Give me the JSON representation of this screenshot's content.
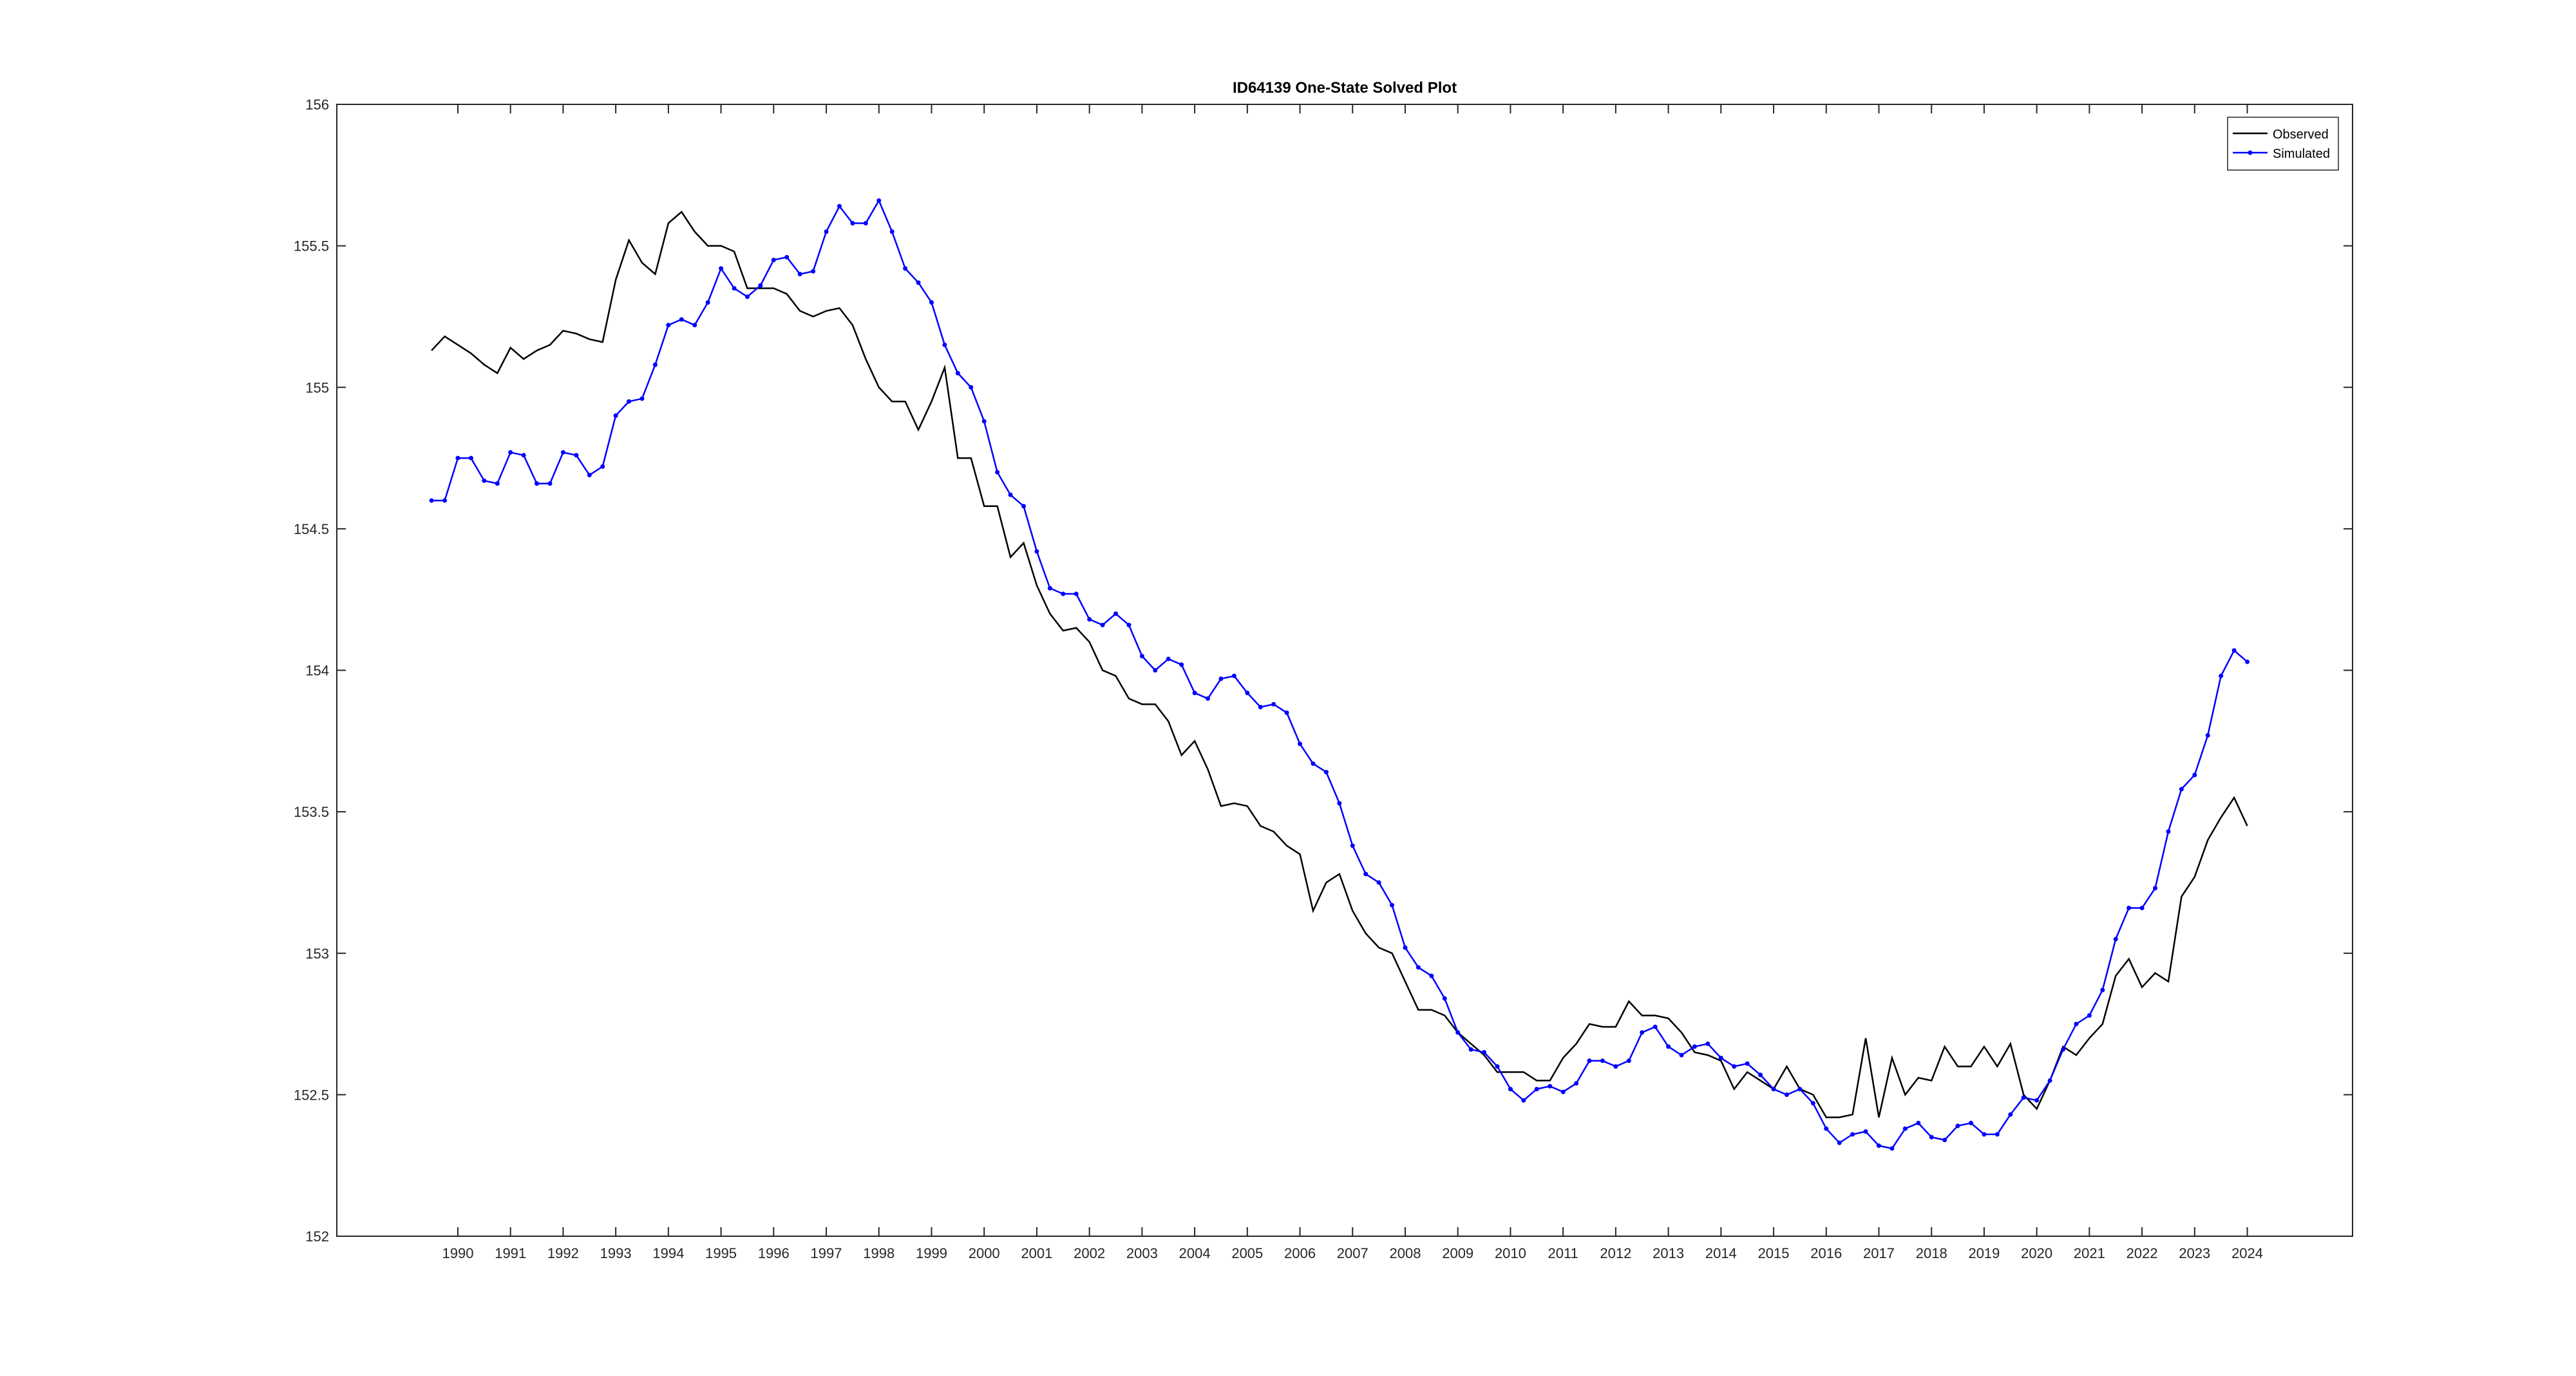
{
  "chart_data": {
    "type": "line",
    "title": "ID64139 One-State Solved Plot",
    "x": [
      1989.5,
      1989.75,
      1990,
      1990.25,
      1990.5,
      1990.75,
      1991,
      1991.25,
      1991.5,
      1991.75,
      1992,
      1992.25,
      1992.5,
      1992.75,
      1993,
      1993.25,
      1993.5,
      1993.75,
      1994,
      1994.25,
      1994.5,
      1994.75,
      1995,
      1995.25,
      1995.5,
      1995.75,
      1996,
      1996.25,
      1996.5,
      1996.75,
      1997,
      1997.25,
      1997.5,
      1997.75,
      1998,
      1998.25,
      1998.5,
      1998.75,
      1999,
      1999.25,
      1999.5,
      1999.75,
      2000,
      2000.25,
      2000.5,
      2000.75,
      2001,
      2001.25,
      2001.5,
      2001.75,
      2002,
      2002.25,
      2002.5,
      2002.75,
      2003,
      2003.25,
      2003.5,
      2003.75,
      2004,
      2004.25,
      2004.5,
      2004.75,
      2005,
      2005.25,
      2005.5,
      2005.75,
      2006,
      2006.25,
      2006.5,
      2006.75,
      2007,
      2007.25,
      2007.5,
      2007.75,
      2008,
      2008.25,
      2008.5,
      2008.75,
      2009,
      2009.25,
      2009.5,
      2009.75,
      2010,
      2010.25,
      2010.5,
      2010.75,
      2011,
      2011.25,
      2011.5,
      2011.75,
      2012,
      2012.25,
      2012.5,
      2012.75,
      2013,
      2013.25,
      2013.5,
      2013.75,
      2014,
      2014.25,
      2014.5,
      2014.75,
      2015,
      2015.25,
      2015.5,
      2015.75,
      2016,
      2016.25,
      2016.5,
      2016.75,
      2017,
      2017.25,
      2017.5,
      2017.75,
      2018,
      2018.25,
      2018.5,
      2018.75,
      2019,
      2019.25,
      2019.5,
      2019.75,
      2020,
      2020.25,
      2020.5,
      2020.75,
      2021,
      2021.25,
      2021.5,
      2021.75,
      2022,
      2022.25,
      2022.5,
      2022.75,
      2023,
      2023.25,
      2023.5,
      2023.75,
      2024
    ],
    "series": [
      {
        "name": "Observed",
        "color": "#000000",
        "marker": false,
        "values": [
          155.13,
          155.18,
          155.15,
          155.12,
          155.08,
          155.05,
          155.14,
          155.1,
          155.13,
          155.15,
          155.2,
          155.19,
          155.17,
          155.16,
          155.38,
          155.52,
          155.44,
          155.4,
          155.58,
          155.62,
          155.55,
          155.5,
          155.5,
          155.48,
          155.35,
          155.35,
          155.35,
          155.33,
          155.27,
          155.25,
          155.27,
          155.28,
          155.22,
          155.1,
          155.0,
          154.95,
          154.95,
          154.85,
          154.95,
          155.07,
          154.75,
          154.75,
          154.58,
          154.58,
          154.4,
          154.45,
          154.3,
          154.2,
          154.14,
          154.15,
          154.1,
          154.0,
          153.98,
          153.9,
          153.88,
          153.88,
          153.82,
          153.7,
          153.75,
          153.65,
          153.52,
          153.53,
          153.52,
          153.45,
          153.43,
          153.38,
          153.35,
          153.15,
          153.25,
          153.28,
          153.15,
          153.07,
          153.02,
          153.0,
          152.9,
          152.8,
          152.8,
          152.78,
          152.72,
          152.68,
          152.64,
          152.58,
          152.58,
          152.58,
          152.55,
          152.55,
          152.63,
          152.68,
          152.75,
          152.74,
          152.74,
          152.83,
          152.78,
          152.78,
          152.77,
          152.72,
          152.65,
          152.64,
          152.62,
          152.52,
          152.58,
          152.55,
          152.52,
          152.6,
          152.52,
          152.5,
          152.42,
          152.42,
          152.43,
          152.7,
          152.42,
          152.63,
          152.5,
          152.56,
          152.55,
          152.67,
          152.6,
          152.6,
          152.67,
          152.6,
          152.68,
          152.5,
          152.45,
          152.55,
          152.67,
          152.64,
          152.7,
          152.75,
          152.92,
          152.98,
          152.88,
          152.93,
          152.9,
          153.2,
          153.27,
          153.4,
          153.48,
          153.55,
          153.45
        ]
      },
      {
        "name": "Simulated",
        "color": "#0000ff",
        "marker": true,
        "values": [
          154.6,
          154.6,
          154.75,
          154.75,
          154.67,
          154.66,
          154.77,
          154.76,
          154.66,
          154.66,
          154.77,
          154.76,
          154.69,
          154.72,
          154.9,
          154.95,
          154.96,
          155.08,
          155.22,
          155.24,
          155.22,
          155.3,
          155.42,
          155.35,
          155.32,
          155.36,
          155.45,
          155.46,
          155.4,
          155.41,
          155.55,
          155.64,
          155.58,
          155.58,
          155.66,
          155.55,
          155.42,
          155.37,
          155.3,
          155.15,
          155.05,
          155.0,
          154.88,
          154.7,
          154.62,
          154.58,
          154.42,
          154.29,
          154.27,
          154.27,
          154.18,
          154.16,
          154.2,
          154.16,
          154.05,
          154.0,
          154.04,
          154.02,
          153.92,
          153.9,
          153.97,
          153.98,
          153.92,
          153.87,
          153.88,
          153.85,
          153.74,
          153.67,
          153.64,
          153.53,
          153.38,
          153.28,
          153.25,
          153.17,
          153.02,
          152.95,
          152.92,
          152.84,
          152.72,
          152.66,
          152.65,
          152.6,
          152.52,
          152.48,
          152.52,
          152.53,
          152.51,
          152.54,
          152.62,
          152.62,
          152.6,
          152.62,
          152.72,
          152.74,
          152.67,
          152.64,
          152.67,
          152.68,
          152.63,
          152.6,
          152.61,
          152.57,
          152.52,
          152.5,
          152.52,
          152.47,
          152.38,
          152.33,
          152.36,
          152.37,
          152.32,
          152.31,
          152.38,
          152.4,
          152.35,
          152.34,
          152.39,
          152.4,
          152.36,
          152.36,
          152.43,
          152.49,
          152.48,
          152.55,
          152.66,
          152.75,
          152.78,
          152.87,
          153.05,
          153.16,
          153.16,
          153.23,
          153.43,
          153.58,
          153.63,
          153.77,
          153.98,
          154.07,
          154.03
        ]
      }
    ],
    "xlim": [
      1987.7,
      2026
    ],
    "xticks": [
      1990,
      1991,
      1992,
      1993,
      1994,
      1995,
      1996,
      1997,
      1998,
      1999,
      2000,
      2001,
      2002,
      2003,
      2004,
      2005,
      2006,
      2007,
      2008,
      2009,
      2010,
      2011,
      2012,
      2013,
      2014,
      2015,
      2016,
      2017,
      2018,
      2019,
      2020,
      2021,
      2022,
      2023,
      2024
    ],
    "ylim": [
      152,
      156
    ],
    "yticks": [
      152,
      152.5,
      153,
      153.5,
      154,
      154.5,
      155,
      155.5,
      156
    ],
    "grid": false,
    "legend": "northeast"
  }
}
